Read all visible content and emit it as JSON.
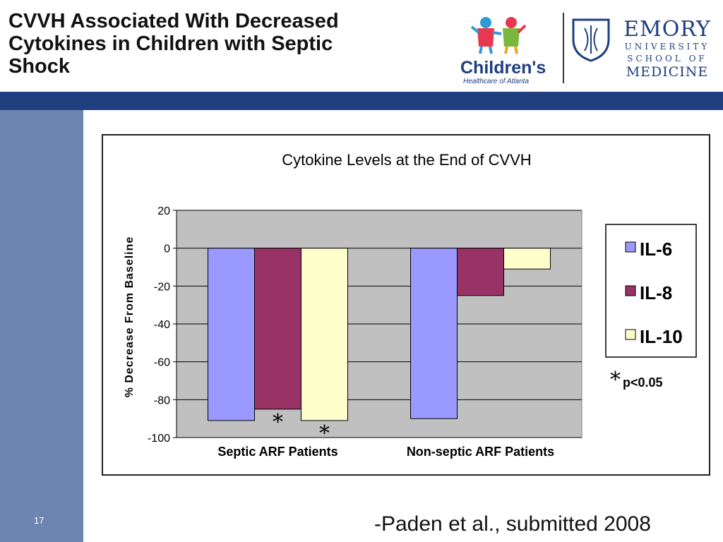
{
  "slide": {
    "title_lines": [
      "CVVH Associated With Decreased",
      "Cytokines in Children with Septic",
      "Shock"
    ],
    "slide_number": "17",
    "citation": "-Paden et al., submitted 2008"
  },
  "logos": {
    "childrens_name": "Children's",
    "childrens_sub": "Healthcare of Atlanta",
    "emory_line1": "EMORY",
    "emory_line2": "UNIVERSITY",
    "emory_line3": "SCHOOL OF",
    "emory_line4": "MEDICINE"
  },
  "significance": {
    "star": "*",
    "text": "p<0.05"
  },
  "colors": {
    "title_bar": "#1f3f7e",
    "side_band": "#6d86b1",
    "plot_area": "#c0c0c0",
    "il6": "#9999ff",
    "il8": "#993366",
    "il10": "#ffffcc"
  },
  "chart_data": {
    "type": "bar",
    "title": "Cytokine Levels at the End of CVVH",
    "ylabel": "% Decrease From Baseline",
    "xlabel": "",
    "categories": [
      "Septic ARF Patients",
      "Non-septic ARF Patients"
    ],
    "ylim": [
      -100,
      20
    ],
    "yticks": [
      20,
      0,
      -20,
      -40,
      -60,
      -80,
      -100
    ],
    "grid": true,
    "legend": "right",
    "series": [
      {
        "name": "IL-6",
        "values": [
          -91,
          -90
        ],
        "color": "#9999ff",
        "significant": [
          false,
          false
        ]
      },
      {
        "name": "IL-8",
        "values": [
          -85,
          -25
        ],
        "color": "#993366",
        "significant": [
          true,
          false
        ]
      },
      {
        "name": "IL-10",
        "values": [
          -91,
          -11
        ],
        "color": "#ffffcc",
        "significant": [
          true,
          false
        ]
      }
    ]
  }
}
